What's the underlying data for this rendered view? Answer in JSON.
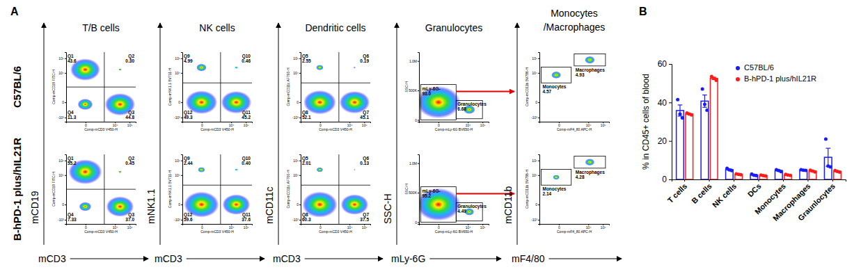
{
  "panel_labels": [
    "A",
    "B"
  ],
  "column_titles": [
    [
      "T/B cells"
    ],
    [
      "NK cells"
    ],
    [
      "Dendritic cells"
    ],
    [
      "Granulocytes"
    ],
    [
      "Monocytes",
      "/Macrophages"
    ]
  ],
  "row_labels": [
    "C57BL/6",
    "B-hPD-1 plus/hIL21R"
  ],
  "column_axes": [
    {
      "x": "mCD3",
      "y": "mCD19"
    },
    {
      "x": "mCD3",
      "y": "mNK1.1"
    },
    {
      "x": "mCD3",
      "y": "mCD11c"
    },
    {
      "x": "mLy-6G",
      "y": "SSC-H"
    },
    {
      "x": "mF4/80",
      "y": "mCD11b"
    }
  ],
  "chart_data": [
    {
      "type": "quadrant",
      "log": true,
      "x_title": "Comp-mCD3 V450-H",
      "y_title": "Comp-mCD19 FITC-H",
      "xlim": [
        -2000,
        262144
      ],
      "ylim": [
        -2000,
        262144
      ],
      "xticks": [
        0,
        {
          "value": 10000,
          "label": "10⁴"
        },
        {
          "value": 100000,
          "label": "10⁵"
        }
      ],
      "yticks": [
        {
          "value": -1000,
          "label": "-10³"
        },
        0,
        {
          "value": 10000,
          "label": "10⁴"
        },
        {
          "value": 100000,
          "label": "10⁵"
        }
      ],
      "gate_x": 1800,
      "gate_y": 1000,
      "gates": [
        {
          "name": "Q1",
          "value": 43.6
        },
        {
          "name": "Q2",
          "value": 0.3,
          "value_label": "0.30"
        },
        {
          "name": "Q3",
          "value": 44.8
        },
        {
          "name": "Q4",
          "value": 11.3
        }
      ]
    },
    {
      "type": "quadrant",
      "log": true,
      "x_title": "Comp-mCD3 V450-H",
      "y_title": "Comp-mNK1.1 BV711-H",
      "xlim": [
        -2000,
        262144
      ],
      "ylim": [
        -2000,
        262144
      ],
      "xticks": [
        0,
        {
          "value": 10000,
          "label": "10⁴"
        },
        {
          "value": 100000,
          "label": "10⁵"
        }
      ],
      "yticks": [
        {
          "value": -1000,
          "label": "-10³"
        },
        0,
        {
          "value": 10000,
          "label": "10⁴"
        },
        {
          "value": 100000,
          "label": "10⁵"
        }
      ],
      "gate_x": 1800,
      "gate_y": 2000,
      "gates": [
        {
          "name": "Q9",
          "value": 4.99
        },
        {
          "name": "Q10",
          "value": 0.46
        },
        {
          "name": "Q11",
          "value": 45.2
        },
        {
          "name": "Q12",
          "value": 49.3
        }
      ]
    },
    {
      "type": "quadrant",
      "log": true,
      "x_title": "Comp-mCD3 V450-H",
      "y_title": "Comp-mCD11c AF700-H",
      "xlim": [
        -2000,
        262144
      ],
      "ylim": [
        -2000,
        262144
      ],
      "xticks": [
        0,
        {
          "value": 10000,
          "label": "10⁴"
        },
        {
          "value": 100000,
          "label": "10⁵"
        }
      ],
      "yticks": [
        {
          "value": -1000,
          "label": "-10³"
        },
        0,
        {
          "value": 10000,
          "label": "10⁴"
        },
        {
          "value": 100000,
          "label": "10⁵"
        }
      ],
      "gate_x": 1800,
      "gate_y": 2000,
      "gates": [
        {
          "name": "Q5",
          "value": 2.55
        },
        {
          "name": "Q6",
          "value": 0.19
        },
        {
          "name": "Q7",
          "value": 45.1
        },
        {
          "name": "Q8",
          "value": 52.1
        }
      ]
    },
    {
      "type": "gate",
      "log": "x",
      "x_title": "Comp-mLy-6G BV650-H",
      "y_title": "SSC-H",
      "xlim": [
        -2000,
        262144
      ],
      "ylim": [
        -30000,
        1150000
      ],
      "xticks": [
        0,
        {
          "value": 10000,
          "label": "10⁴"
        },
        {
          "value": 100000,
          "label": "10⁵"
        }
      ],
      "yticks": [
        0,
        {
          "value": 500000,
          "label": "500K"
        },
        {
          "value": 1000000,
          "label": "1.0M"
        }
      ],
      "gates": [
        {
          "name": "mLy-6G-",
          "value": 93,
          "value_label": "93.0",
          "x_range": [
            -1500,
            1500
          ],
          "y_range": [
            0,
            600000
          ]
        },
        {
          "name": "Granulocytes",
          "value": 6.68,
          "x_range": [
            1500,
            100000
          ],
          "y_range": [
            20000,
            330000
          ]
        }
      ]
    },
    {
      "type": "gate",
      "log": true,
      "x_title": "Comp-mF4_80 APC-H",
      "y_title": "Comp-mCD11b BV786-H",
      "xlim": [
        -2000,
        262144
      ],
      "ylim": [
        -2000,
        262144
      ],
      "xticks": [
        0,
        {
          "value": 10000,
          "label": "10⁴"
        },
        {
          "value": 100000,
          "label": "10⁵"
        }
      ],
      "yticks": [
        {
          "value": -1000,
          "label": "-10³"
        },
        0,
        {
          "value": 10000,
          "label": "10⁴"
        },
        {
          "value": 100000,
          "label": "10⁵"
        }
      ],
      "gates": [
        {
          "name": "Monocytes",
          "value": 4.57,
          "x_range": [
            -1500,
            600
          ],
          "y_range": [
            2000,
            25000
          ]
        },
        {
          "name": "Macrophages",
          "value": 4.93,
          "x_range": [
            1000,
            150000
          ],
          "y_range": [
            30000,
            200000
          ]
        }
      ]
    },
    {
      "type": "quadrant",
      "log": true,
      "x_title": "Comp-mCD3 V450-H",
      "y_title": "Comp-mCD19 FITC-H",
      "xlim": [
        -2000,
        262144
      ],
      "ylim": [
        -2000,
        262144
      ],
      "xticks": [
        0,
        {
          "value": 10000,
          "label": "10⁴"
        },
        {
          "value": 100000,
          "label": "10⁵"
        }
      ],
      "yticks": [
        {
          "value": -1000,
          "label": "-10³"
        },
        0,
        {
          "value": 10000,
          "label": "10⁴"
        },
        {
          "value": 100000,
          "label": "10⁵"
        }
      ],
      "gate_x": 1800,
      "gate_y": 1000,
      "gates": [
        {
          "name": "Q1",
          "value": 55.2
        },
        {
          "name": "Q2",
          "value": 0.45
        },
        {
          "name": "Q3",
          "value": 37,
          "value_label": "37.0"
        },
        {
          "name": "Q4",
          "value": 7.33
        }
      ]
    },
    {
      "type": "quadrant",
      "log": true,
      "x_title": "Comp-mCD3 V450-H",
      "y_title": "Comp-mNK1.1 BV711-H",
      "xlim": [
        -2000,
        262144
      ],
      "ylim": [
        -2000,
        262144
      ],
      "xticks": [
        0,
        {
          "value": 10000,
          "label": "10⁴"
        },
        {
          "value": 100000,
          "label": "10⁵"
        }
      ],
      "yticks": [
        {
          "value": -1000,
          "label": "-10³"
        },
        0,
        {
          "value": 10000,
          "label": "10⁴"
        },
        {
          "value": 100000,
          "label": "10⁵"
        }
      ],
      "gate_x": 1800,
      "gate_y": 2000,
      "gates": [
        {
          "name": "Q9",
          "value": 2.44
        },
        {
          "name": "Q10",
          "value": 0.4,
          "value_label": "0.40"
        },
        {
          "name": "Q11",
          "value": 37.6
        },
        {
          "name": "Q12",
          "value": 59.6
        }
      ]
    },
    {
      "type": "quadrant",
      "log": true,
      "x_title": "Comp-mCD3 V450-H",
      "y_title": "Comp-mCD11c AF700-H",
      "xlim": [
        -2000,
        262144
      ],
      "ylim": [
        -2000,
        262144
      ],
      "xticks": [
        0,
        {
          "value": 10000,
          "label": "10⁴"
        },
        {
          "value": 100000,
          "label": "10⁵"
        }
      ],
      "yticks": [
        {
          "value": -1000,
          "label": "-10³"
        },
        0,
        {
          "value": 10000,
          "label": "10⁴"
        },
        {
          "value": 100000,
          "label": "10⁵"
        }
      ],
      "gate_x": 1800,
      "gate_y": 2000,
      "gates": [
        {
          "name": "Q5",
          "value": 2.01
        },
        {
          "name": "Q6",
          "value": 0.13
        },
        {
          "name": "Q7",
          "value": 37.5
        },
        {
          "name": "Q8",
          "value": 60.3
        }
      ]
    },
    {
      "type": "gate",
      "log": "x",
      "x_title": "Comp-mLy-6G BV650-H",
      "y_title": "SSC-H",
      "xlim": [
        -2000,
        262144
      ],
      "ylim": [
        -30000,
        1150000
      ],
      "xticks": [
        0,
        {
          "value": 10000,
          "label": "10⁴"
        },
        {
          "value": 100000,
          "label": "10⁵"
        }
      ],
      "yticks": [
        0,
        {
          "value": 500000,
          "label": "500K"
        },
        {
          "value": 1000000,
          "label": "1.0M"
        }
      ],
      "gates": [
        {
          "name": "mLy-6G-",
          "value": 95.2,
          "x_range": [
            -1500,
            1500
          ],
          "y_range": [
            0,
            600000
          ]
        },
        {
          "name": "Granulocytes",
          "value": 4.49,
          "x_range": [
            1500,
            100000
          ],
          "y_range": [
            20000,
            330000
          ]
        }
      ]
    },
    {
      "type": "gate",
      "log": true,
      "x_title": "Comp-mF4_80 APC-H",
      "y_title": "Comp-mCD11b BV786-H",
      "xlim": [
        -2000,
        262144
      ],
      "ylim": [
        -2000,
        262144
      ],
      "xticks": [
        0,
        {
          "value": 10000,
          "label": "10⁴"
        },
        {
          "value": 100000,
          "label": "10⁵"
        }
      ],
      "yticks": [
        {
          "value": -1000,
          "label": "-10³"
        },
        0,
        {
          "value": 10000,
          "label": "10⁴"
        },
        {
          "value": 100000,
          "label": "10⁵"
        }
      ],
      "gates": [
        {
          "name": "Monocytes",
          "value": 2.14,
          "x_range": [
            -1500,
            600
          ],
          "y_range": [
            2000,
            25000
          ]
        },
        {
          "name": "Macrophages",
          "value": 4.28,
          "x_range": [
            1000,
            150000
          ],
          "y_range": [
            30000,
            200000
          ]
        }
      ]
    },
    {
      "type": "bar",
      "ylabel": "% in CD45+ cells of blood",
      "categories": [
        "T cells",
        "B cells",
        "NK cells",
        "DCs",
        "Monocytes",
        "Macrophages",
        "Graunlocytes"
      ],
      "ylim": [
        0,
        60
      ],
      "yticks": [
        0,
        20,
        40,
        60
      ],
      "legend": "top-right",
      "series": [
        {
          "name": "C57BL/6",
          "color": "#1a1aff",
          "values": [
            35.8,
            40.7,
            5.1,
            2.3,
            4.6,
            4.9,
            11.5
          ],
          "errors": [
            2.9,
            3.2,
            0.35,
            0.24,
            0.3,
            0.12,
            4.7
          ],
          "points": [
            [
              41.5,
              34,
              32
            ],
            [
              47,
              39,
              36
            ],
            [
              5.8,
              5,
              4.6
            ],
            [
              2.8,
              2.2,
              2
            ],
            [
              5.1,
              4.6,
              4.1
            ],
            [
              5.1,
              4.8,
              4.7
            ],
            [
              21,
              7,
              6.5
            ]
          ]
        },
        {
          "name": "B-hPD-1 plus/hIL21R",
          "color": "#ff1a1a",
          "values": [
            34,
            52.5,
            2.6,
            2,
            2.3,
            4.3,
            4.2
          ],
          "errors": [
            0.3,
            0.6,
            0.15,
            0.15,
            0.15,
            0.26,
            0.23
          ],
          "points": [
            [
              34.5,
              34,
              33.5
            ],
            [
              53.5,
              52.5,
              51.5
            ],
            [
              2.9,
              2.6,
              2.4
            ],
            [
              2.3,
              2,
              1.8
            ],
            [
              2.6,
              2.3,
              2.1
            ],
            [
              4.8,
              4.3,
              3.9
            ],
            [
              4.6,
              4.2,
              3.8
            ]
          ]
        }
      ]
    }
  ]
}
